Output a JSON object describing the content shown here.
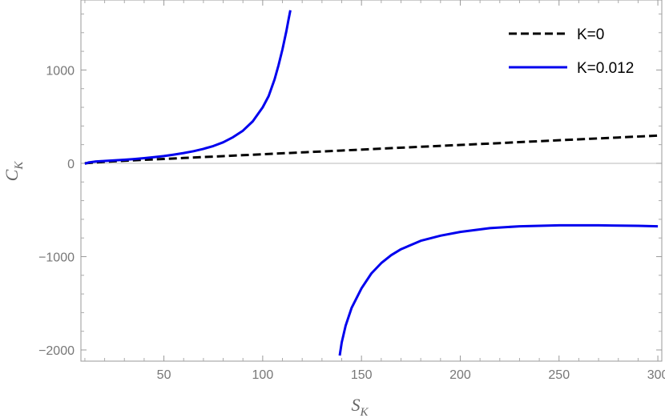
{
  "chart_data": {
    "type": "line",
    "title": "",
    "xlabel": {
      "main": "S",
      "sub": "K"
    },
    "ylabel": {
      "main": "C",
      "sub": "K"
    },
    "xlim": [
      8,
      302
    ],
    "ylim": [
      -2120,
      1750
    ],
    "x_ticks": [
      50,
      100,
      150,
      200,
      250,
      300
    ],
    "x_tick_labels": [
      "50",
      "100",
      "150",
      "200",
      "250",
      "300"
    ],
    "y_ticks": [
      -2000,
      -1000,
      0,
      1000
    ],
    "y_tick_labels": [
      "−2000",
      "−1000",
      "0",
      "1000"
    ],
    "grid": false,
    "zero_line": true,
    "legend_position": "top-right",
    "series": [
      {
        "name": "K=0",
        "color": "#000000",
        "dash": "dashed",
        "segments": [
          {
            "x": [
              10,
              20,
              30,
              40,
              50,
              60,
              70,
              80,
              90,
              100,
              120,
              140,
              160,
              180,
              200,
              220,
              240,
              260,
              280,
              300
            ],
            "y": [
              0,
              17,
              27,
              37,
              47,
              57,
              67,
              77,
              87,
              97,
              117,
              137,
              157,
              177,
              197,
              217,
              237,
              257,
              277,
              297
            ]
          }
        ]
      },
      {
        "name": "K=0.012",
        "color": "#0000ee",
        "dash": "solid",
        "segments": [
          {
            "x": [
              10,
              12,
              15,
              20,
              25,
              30,
              35,
              40,
              45,
              50,
              55,
              60,
              65,
              70,
              75,
              80,
              85,
              90,
              95,
              100,
              103,
              106,
              108,
              110,
              112,
              113,
              114
            ],
            "y": [
              -5,
              10,
              18,
              25,
              32,
              38,
              46,
              55,
              66,
              78,
              93,
              110,
              130,
              155,
              185,
              225,
              280,
              350,
              450,
              600,
              720,
              900,
              1050,
              1220,
              1420,
              1530,
              1640
            ]
          },
          {
            "x": [
              139,
              140,
              142,
              145,
              150,
              155,
              160,
              165,
              170,
              180,
              190,
              200,
              215,
              230,
              250,
              270,
              290,
              300
            ],
            "y": [
              -2060,
              -1920,
              -1740,
              -1550,
              -1340,
              -1180,
              -1070,
              -985,
              -920,
              -830,
              -775,
              -735,
              -695,
              -675,
              -665,
              -665,
              -670,
              -675
            ]
          }
        ]
      }
    ]
  }
}
